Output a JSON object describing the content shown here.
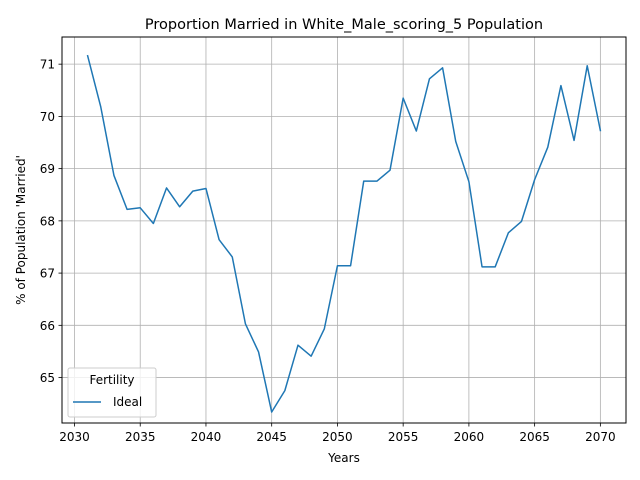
{
  "chart_data": {
    "type": "line",
    "title": "Proportion Married in White_Male_scoring_5 Population",
    "xlabel": "Years",
    "ylabel": "% of Population 'Married'",
    "xlim": [
      2029.05,
      2071.95
    ],
    "ylim": [
      64.13,
      71.52
    ],
    "xticks": [
      2030,
      2035,
      2040,
      2045,
      2050,
      2055,
      2060,
      2065,
      2070
    ],
    "yticks": [
      65,
      66,
      67,
      68,
      69,
      70,
      71
    ],
    "grid": true,
    "legend": {
      "title": "Fertility",
      "placement": "lower-left"
    },
    "series": [
      {
        "name": "Ideal",
        "color": "#1f77b4",
        "x": [
          2031,
          2032,
          2033,
          2034,
          2035,
          2036,
          2037,
          2038,
          2039,
          2040,
          2041,
          2042,
          2043,
          2044,
          2045,
          2046,
          2047,
          2048,
          2049,
          2050,
          2051,
          2052,
          2053,
          2054,
          2055,
          2056,
          2057,
          2058,
          2059,
          2060,
          2061,
          2062,
          2063,
          2064,
          2065,
          2066,
          2067,
          2068,
          2069,
          2070
        ],
        "y": [
          71.16,
          70.18,
          68.87,
          68.22,
          68.25,
          67.95,
          68.63,
          68.27,
          68.57,
          68.62,
          67.64,
          67.31,
          66.03,
          65.49,
          64.34,
          64.75,
          65.62,
          65.41,
          65.93,
          67.14,
          67.14,
          68.76,
          68.76,
          68.97,
          70.35,
          69.72,
          70.72,
          70.93,
          69.52,
          68.75,
          67.12,
          67.12,
          67.77,
          67.99,
          68.79,
          69.41,
          70.59,
          69.54,
          70.97,
          69.73
        ]
      }
    ]
  }
}
